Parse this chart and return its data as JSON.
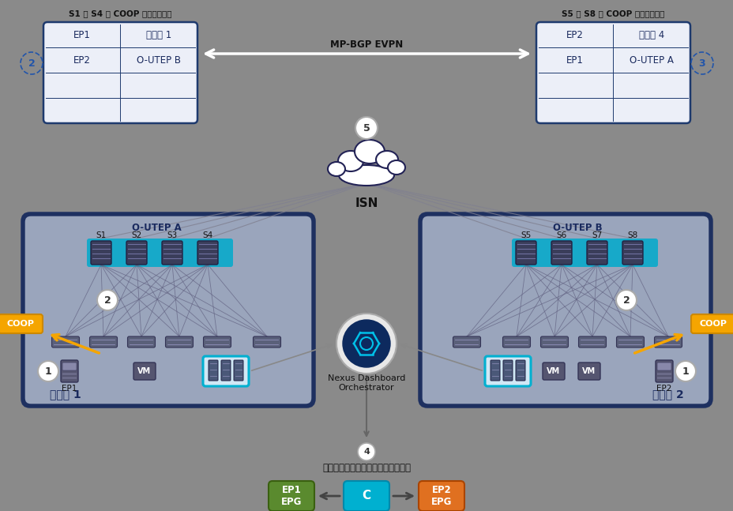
{
  "bg_color": "#8a8a8a",
  "table1_title": "S1 ～ S4 の COOP データベース",
  "table2_title": "S5 ～ S8 の COOP データベース",
  "table1_rows": [
    [
      "EP1",
      "リーフ 1"
    ],
    [
      "EP2",
      "O-UTEP B"
    ],
    [
      "",
      ""
    ],
    [
      "",
      ""
    ]
  ],
  "table2_rows": [
    [
      "EP2",
      "リーフ 4"
    ],
    [
      "EP1",
      "O-UTEP A"
    ],
    [
      "",
      ""
    ],
    [
      "",
      ""
    ]
  ],
  "table_bg": "#eceff8",
  "table_border": "#1e3a6e",
  "mpbgp_label": "MP-BGP EVPN",
  "isn_label": "ISN",
  "ndo_label": "Nexus Dashboard\nOrchestrator",
  "step4_label": "サイト間ポリシーの定義とプッシュ",
  "otep_a_label": "O-UTEP A",
  "otep_b_label": "O-UTEP B",
  "coop_color": "#f5a500",
  "coop_label": "COOP",
  "site1_label": "サイト 1",
  "site2_label": "サイト 2",
  "ep1_epg_color": "#5a8a2e",
  "ep2_epg_color": "#e07020",
  "c_color": "#00b0d0",
  "arrow_color": "#cccccc"
}
